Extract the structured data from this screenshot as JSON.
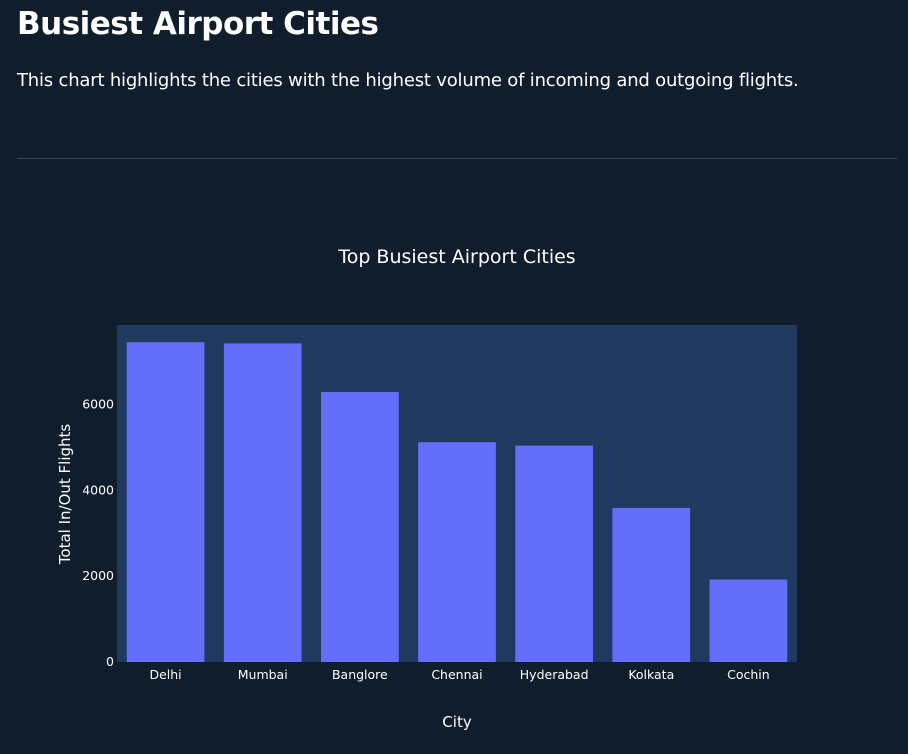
{
  "page": {
    "title": "Busiest Airport Cities",
    "description": "This chart highlights the cities with the highest volume of incoming and outgoing flights."
  },
  "colors": {
    "background": "#0f1d2c",
    "plot_background": "#1f3a5e",
    "bar": "#636efa",
    "text": "#ffffff"
  },
  "chart_data": {
    "type": "bar",
    "title": "Top Busiest Airport Cities",
    "xlabel": "City",
    "ylabel": "Total In/Out Flights",
    "categories": [
      "Delhi",
      "Mumbai",
      "Banglore",
      "Chennai",
      "Hyderabad",
      "Kolkata",
      "Cochin"
    ],
    "values": [
      7450,
      7420,
      6290,
      5120,
      5040,
      3590,
      1920
    ],
    "ylim": [
      0,
      7850
    ],
    "yticks": [
      0,
      2000,
      4000,
      6000
    ],
    "grid": false
  }
}
